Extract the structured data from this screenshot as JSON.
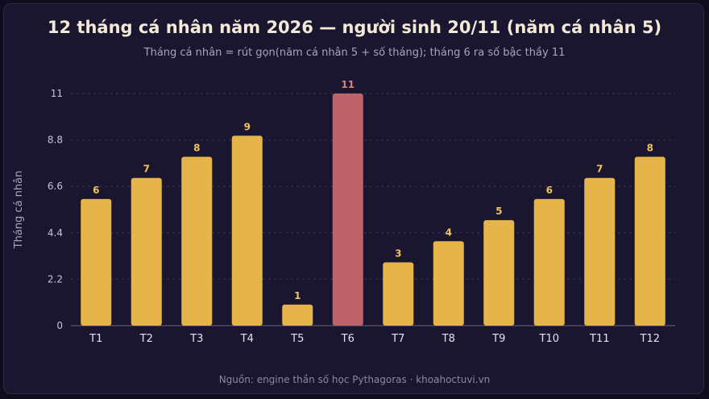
{
  "chart_data": {
    "type": "bar",
    "title": "12 tháng cá nhân năm 2026 — người sinh 20/11 (năm cá nhân 5)",
    "subtitle": "Tháng cá nhân = rút gọn(năm cá nhân 5 + số tháng); tháng 6 ra số bậc thầy 11",
    "ylabel": "Tháng cá nhân",
    "xlabel": "",
    "categories": [
      "T1",
      "T2",
      "T3",
      "T4",
      "T5",
      "T6",
      "T7",
      "T8",
      "T9",
      "T10",
      "T11",
      "T12"
    ],
    "values": [
      6,
      7,
      8,
      9,
      1,
      11,
      3,
      4,
      5,
      6,
      7,
      8
    ],
    "highlight_index": 5,
    "yticks": [
      "0",
      "2.2",
      "4.4",
      "6.6",
      "8.8",
      "11"
    ],
    "ylim": [
      0,
      11
    ],
    "grid": true,
    "colors": {
      "bar": "#e6b54a",
      "highlight": "#be636b",
      "value_label": "#f0c35a",
      "highlight_label": "#e07d85"
    }
  },
  "footer": "Nguồn: engine thần số học Pythagoras · khoahoctuvi.vn"
}
